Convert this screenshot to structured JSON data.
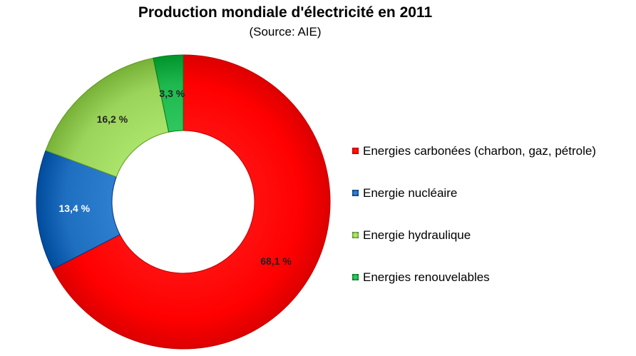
{
  "chart_data": {
    "type": "pie",
    "title": "Production mondiale d'électricité en 2011",
    "subtitle": "(Source: AIE)",
    "legend_position": "right",
    "slices": [
      {
        "label": "Energies carbonées (charbon, gaz, pétrole)",
        "value": 68.1,
        "value_label": "68,1 %",
        "color": "#ff0000"
      },
      {
        "label": "Energie nucléaire",
        "value": 13.4,
        "value_label": "13,4 %",
        "color": "#1f6fc0"
      },
      {
        "label": "Energie hydraulique",
        "value": 16.2,
        "value_label": "16,2 %",
        "color": "#9bd45a"
      },
      {
        "label": "Energies renouvelables",
        "value": 3.3,
        "value_label": "3,3 %",
        "color": "#1fb84f"
      }
    ]
  }
}
